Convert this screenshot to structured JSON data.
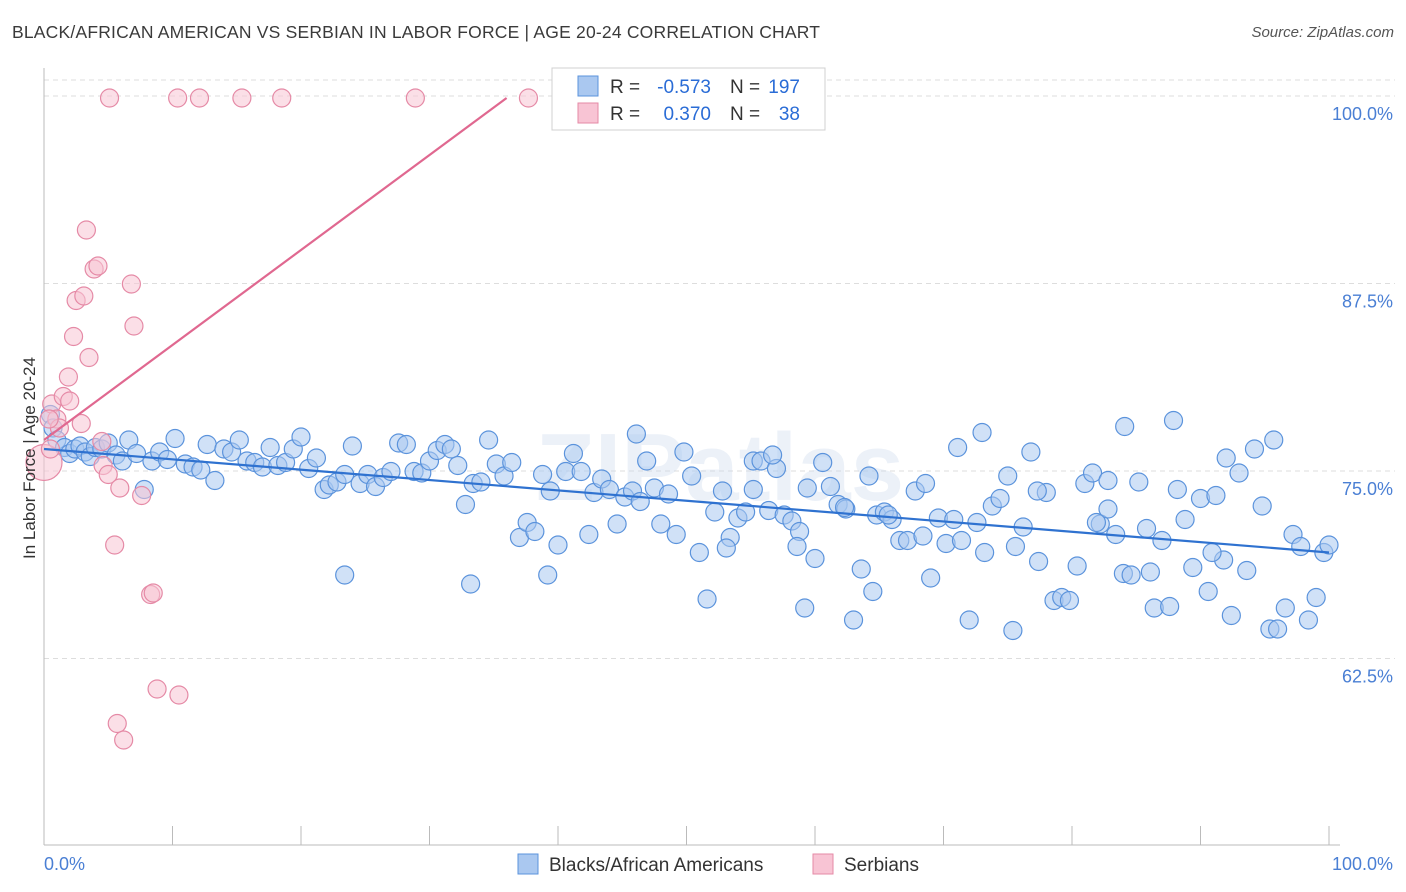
{
  "title": "BLACK/AFRICAN AMERICAN VS SERBIAN IN LABOR FORCE | AGE 20-24 CORRELATION CHART",
  "source": "Source: ZipAtlas.com",
  "watermark": "ZIPatlas",
  "colors": {
    "blue_fill": "#aac8f0",
    "blue_stroke": "#5b93dc",
    "blue_line": "#2f72d0",
    "pink_fill": "#f8c4d4",
    "pink_stroke": "#e58aa6",
    "pink_line": "#e06890",
    "grid": "#dddddd",
    "tick_text": "#4a7fd4"
  },
  "legend": {
    "r_label": "R =",
    "n_label": "N =",
    "rows": [
      {
        "series": "blue",
        "r": "-0.573",
        "n": "197"
      },
      {
        "series": "pink",
        "r": "0.370",
        "n": "38"
      }
    ]
  },
  "chart_data": {
    "type": "scatter",
    "title": "BLACK/AFRICAN AMERICAN VS SERBIAN IN LABOR FORCE | AGE 20-24 CORRELATION CHART",
    "xlabel": "",
    "ylabel": "In Labor Force | Age 20-24",
    "xlim": [
      0,
      100
    ],
    "ylim": [
      50,
      101
    ],
    "x_tick_labels": [
      "0.0%",
      "100.0%"
    ],
    "y_ticks": [
      62.5,
      75.0,
      87.5,
      100.0
    ],
    "y_tick_labels": [
      "62.5%",
      "75.0%",
      "87.5%",
      "100.0%"
    ],
    "grid": true,
    "legend_position": "top-center",
    "series": [
      {
        "name": "Blacks/African Americans",
        "color": "blue",
        "trend": {
          "x": [
            0,
            100
          ],
          "y": [
            76.6,
            69.7
          ]
        },
        "points": [
          [
            0.5,
            78.9
          ],
          [
            0.7,
            78.0
          ],
          [
            1.0,
            77.2
          ],
          [
            1.6,
            76.7
          ],
          [
            2.0,
            76.3
          ],
          [
            2.4,
            76.6
          ],
          [
            2.8,
            76.8
          ],
          [
            3.2,
            76.4
          ],
          [
            3.6,
            76.1
          ],
          [
            4.0,
            76.7
          ],
          [
            4.5,
            76.6
          ],
          [
            5.0,
            77.0
          ],
          [
            5.6,
            76.2
          ],
          [
            6.1,
            75.8
          ],
          [
            6.6,
            77.2
          ],
          [
            7.2,
            76.3
          ],
          [
            7.8,
            73.9
          ],
          [
            8.4,
            75.8
          ],
          [
            9.0,
            76.4
          ],
          [
            9.6,
            75.9
          ],
          [
            10.2,
            77.3
          ],
          [
            11.0,
            75.6
          ],
          [
            11.6,
            75.4
          ],
          [
            12.2,
            75.2
          ],
          [
            12.7,
            76.9
          ],
          [
            13.3,
            74.5
          ],
          [
            14.0,
            76.6
          ],
          [
            14.6,
            76.4
          ],
          [
            15.2,
            77.2
          ],
          [
            15.8,
            75.8
          ],
          [
            16.4,
            75.7
          ],
          [
            17.0,
            75.4
          ],
          [
            17.6,
            76.7
          ],
          [
            18.2,
            75.5
          ],
          [
            18.8,
            75.7
          ],
          [
            19.4,
            76.6
          ],
          [
            20.0,
            77.4
          ],
          [
            20.6,
            75.3
          ],
          [
            21.2,
            76.0
          ],
          [
            21.8,
            73.9
          ],
          [
            22.2,
            74.2
          ],
          [
            22.8,
            74.4
          ],
          [
            23.4,
            74.9
          ],
          [
            24.0,
            76.8
          ],
          [
            24.6,
            74.3
          ],
          [
            25.2,
            74.9
          ],
          [
            25.8,
            74.1
          ],
          [
            26.4,
            74.7
          ],
          [
            27.0,
            75.1
          ],
          [
            27.6,
            77.0
          ],
          [
            28.2,
            76.9
          ],
          [
            28.8,
            75.1
          ],
          [
            29.4,
            75.0
          ],
          [
            30.0,
            75.8
          ],
          [
            30.6,
            76.5
          ],
          [
            31.2,
            76.9
          ],
          [
            31.7,
            76.6
          ],
          [
            32.2,
            75.5
          ],
          [
            32.8,
            72.9
          ],
          [
            33.4,
            74.3
          ],
          [
            34.0,
            74.4
          ],
          [
            34.6,
            77.2
          ],
          [
            35.2,
            75.6
          ],
          [
            35.8,
            74.8
          ],
          [
            36.4,
            75.7
          ],
          [
            37.0,
            70.7
          ],
          [
            37.6,
            71.7
          ],
          [
            38.2,
            71.1
          ],
          [
            38.8,
            74.9
          ],
          [
            39.4,
            73.8
          ],
          [
            40.0,
            70.2
          ],
          [
            40.6,
            75.1
          ],
          [
            41.2,
            76.3
          ],
          [
            41.8,
            75.1
          ],
          [
            42.4,
            70.9
          ],
          [
            42.8,
            73.7
          ],
          [
            43.4,
            74.6
          ],
          [
            44.0,
            73.9
          ],
          [
            44.6,
            71.6
          ],
          [
            45.2,
            73.4
          ],
          [
            45.8,
            73.8
          ],
          [
            46.4,
            73.1
          ],
          [
            46.9,
            75.8
          ],
          [
            47.5,
            74.0
          ],
          [
            48.0,
            71.6
          ],
          [
            48.6,
            73.6
          ],
          [
            49.2,
            70.9
          ],
          [
            49.8,
            76.4
          ],
          [
            50.4,
            74.8
          ],
          [
            51.0,
            69.7
          ],
          [
            51.6,
            66.6
          ],
          [
            52.2,
            72.4
          ],
          [
            52.8,
            73.8
          ],
          [
            53.4,
            70.7
          ],
          [
            54.0,
            72.0
          ],
          [
            54.6,
            72.4
          ],
          [
            55.2,
            75.8
          ],
          [
            55.8,
            75.8
          ],
          [
            56.4,
            72.5
          ],
          [
            57.0,
            75.3
          ],
          [
            57.6,
            72.2
          ],
          [
            58.2,
            71.8
          ],
          [
            58.8,
            71.1
          ],
          [
            59.4,
            74.0
          ],
          [
            60.0,
            69.3
          ],
          [
            60.6,
            75.7
          ],
          [
            61.2,
            74.1
          ],
          [
            61.8,
            72.9
          ],
          [
            62.4,
            72.6
          ],
          [
            63.0,
            65.2
          ],
          [
            63.6,
            68.6
          ],
          [
            64.2,
            74.8
          ],
          [
            64.8,
            72.2
          ],
          [
            65.4,
            72.4
          ],
          [
            66.0,
            71.9
          ],
          [
            66.6,
            70.5
          ],
          [
            67.2,
            70.5
          ],
          [
            67.8,
            73.8
          ],
          [
            68.4,
            70.8
          ],
          [
            69.0,
            68.0
          ],
          [
            69.6,
            72.0
          ],
          [
            70.2,
            70.3
          ],
          [
            70.8,
            71.9
          ],
          [
            71.4,
            70.5
          ],
          [
            72.0,
            65.2
          ],
          [
            72.6,
            71.7
          ],
          [
            73.2,
            69.7
          ],
          [
            73.8,
            72.8
          ],
          [
            74.4,
            73.3
          ],
          [
            75.0,
            74.8
          ],
          [
            75.6,
            70.1
          ],
          [
            76.2,
            71.4
          ],
          [
            76.8,
            76.4
          ],
          [
            77.4,
            69.1
          ],
          [
            78.0,
            73.7
          ],
          [
            78.6,
            66.5
          ],
          [
            79.2,
            66.7
          ],
          [
            79.8,
            66.5
          ],
          [
            80.4,
            68.8
          ],
          [
            81.0,
            74.3
          ],
          [
            81.6,
            75.0
          ],
          [
            82.2,
            71.6
          ],
          [
            82.8,
            72.6
          ],
          [
            83.4,
            70.9
          ],
          [
            84.0,
            68.3
          ],
          [
            84.6,
            68.2
          ],
          [
            85.2,
            74.4
          ],
          [
            85.8,
            71.3
          ],
          [
            86.4,
            66.0
          ],
          [
            87.0,
            70.5
          ],
          [
            87.6,
            66.1
          ],
          [
            88.2,
            73.9
          ],
          [
            88.8,
            71.9
          ],
          [
            89.4,
            68.7
          ],
          [
            90.0,
            73.3
          ],
          [
            90.6,
            67.1
          ],
          [
            91.2,
            73.5
          ],
          [
            91.8,
            69.2
          ],
          [
            92.4,
            65.5
          ],
          [
            93.0,
            75.0
          ],
          [
            93.6,
            68.5
          ],
          [
            94.2,
            76.6
          ],
          [
            94.8,
            72.8
          ],
          [
            95.4,
            64.6
          ],
          [
            96.0,
            64.6
          ],
          [
            96.6,
            66.0
          ],
          [
            97.2,
            70.9
          ],
          [
            97.8,
            70.1
          ],
          [
            98.4,
            65.2
          ],
          [
            99.0,
            66.7
          ],
          [
            99.6,
            69.7
          ],
          [
            100.0,
            70.2
          ],
          [
            87.9,
            78.5
          ],
          [
            84.1,
            78.1
          ],
          [
            73.0,
            77.7
          ],
          [
            71.1,
            76.7
          ],
          [
            56.7,
            76.2
          ],
          [
            46.1,
            77.6
          ],
          [
            55.2,
            73.9
          ],
          [
            92.0,
            76.0
          ],
          [
            95.7,
            77.2
          ],
          [
            82.8,
            74.5
          ],
          [
            53.1,
            70.0
          ],
          [
            59.2,
            66.0
          ],
          [
            65.7,
            72.2
          ],
          [
            75.4,
            64.5
          ],
          [
            62.3,
            72.7
          ],
          [
            39.2,
            68.2
          ],
          [
            23.4,
            68.2
          ],
          [
            33.2,
            67.6
          ],
          [
            64.5,
            67.1
          ],
          [
            58.6,
            70.1
          ],
          [
            68.6,
            74.3
          ],
          [
            77.3,
            73.8
          ],
          [
            81.9,
            71.7
          ],
          [
            86.1,
            68.4
          ],
          [
            90.9,
            69.7
          ]
        ]
      },
      {
        "name": "Serbians",
        "color": "pink",
        "trend": {
          "x": [
            0,
            36
          ],
          "y": [
            77.2,
            100.0
          ]
        },
        "points": [
          [
            0.0,
            75.7
          ],
          [
            0.5,
            76.6
          ],
          [
            0.6,
            79.6
          ],
          [
            1.0,
            78.6
          ],
          [
            1.2,
            78.0
          ],
          [
            1.5,
            80.1
          ],
          [
            1.9,
            81.4
          ],
          [
            2.0,
            79.8
          ],
          [
            2.3,
            84.1
          ],
          [
            2.5,
            86.5
          ],
          [
            2.9,
            78.3
          ],
          [
            3.1,
            86.8
          ],
          [
            3.3,
            91.2
          ],
          [
            3.5,
            82.7
          ],
          [
            3.9,
            88.6
          ],
          [
            4.2,
            88.8
          ],
          [
            4.5,
            77.1
          ],
          [
            4.6,
            75.5
          ],
          [
            5.0,
            74.9
          ],
          [
            5.1,
            100.0
          ],
          [
            5.5,
            70.2
          ],
          [
            5.9,
            74.0
          ],
          [
            6.8,
            87.6
          ],
          [
            7.0,
            84.8
          ],
          [
            7.6,
            73.5
          ],
          [
            8.3,
            66.9
          ],
          [
            8.5,
            67.0
          ],
          [
            8.8,
            60.6
          ],
          [
            10.4,
            100.0
          ],
          [
            12.1,
            100.0
          ],
          [
            10.5,
            60.2
          ],
          [
            5.7,
            58.3
          ],
          [
            6.2,
            57.2
          ],
          [
            15.4,
            100.0
          ],
          [
            18.5,
            100.0
          ],
          [
            28.9,
            100.0
          ],
          [
            37.7,
            100.0
          ],
          [
            0.4,
            78.6
          ]
        ]
      }
    ]
  },
  "bottom_legend": [
    {
      "label": "Blacks/African Americans",
      "color": "blue"
    },
    {
      "label": "Serbians",
      "color": "pink"
    }
  ]
}
